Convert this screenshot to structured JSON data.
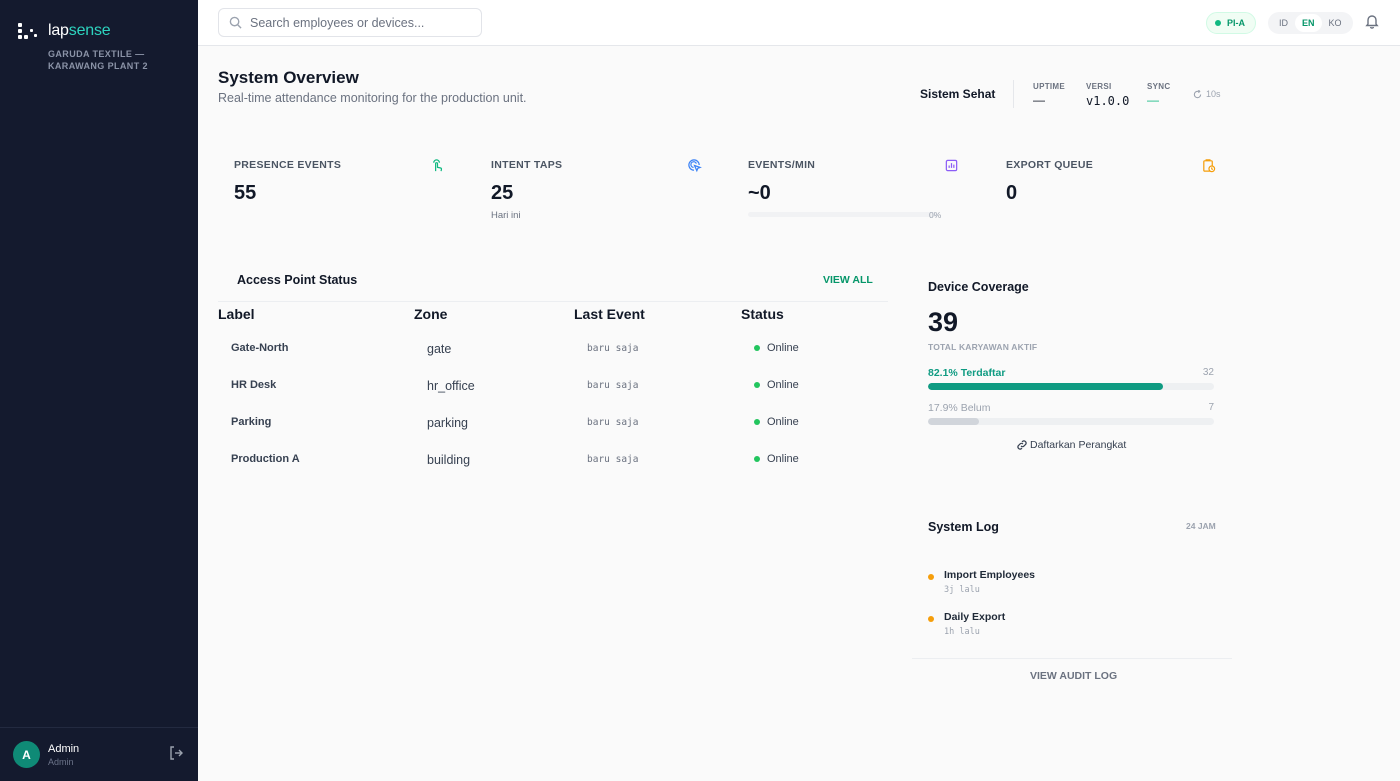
{
  "brand": {
    "lap": "lap",
    "sense": "sense",
    "org": "GARUDA TEXTILE — KARAWANG PLANT 2"
  },
  "user": {
    "initial": "A",
    "name": "Admin",
    "role": "Admin"
  },
  "search": {
    "placeholder": "Search employees or devices..."
  },
  "node_badge": {
    "label": "PI-A",
    "color": "#10b981"
  },
  "languages": [
    "ID",
    "EN",
    "KO"
  ],
  "active_language": "EN",
  "header": {
    "title": "System Overview",
    "subtitle": "Real-time attendance monitoring for the production unit."
  },
  "health": {
    "label": "Sistem Sehat",
    "uptime_label": "UPTIME",
    "uptime_value": "—",
    "version_label": "VERSI",
    "version_value": "v1.0.0",
    "sync_label": "SYNC",
    "sync_value": "—",
    "refresh": "10s"
  },
  "kpis": [
    {
      "label": "PRESENCE EVENTS",
      "value": "55",
      "icon": "hand-tap-icon",
      "color": "#10b981"
    },
    {
      "label": "INTENT TAPS",
      "value": "25",
      "sub": "Hari ini",
      "icon": "target-pointer-icon",
      "color": "#3b82f6"
    },
    {
      "label": "EVENTS/MIN",
      "value": "~0",
      "progress": 0,
      "progress_label": "0%",
      "icon": "bar-chart-icon",
      "color": "#8b5cf6"
    },
    {
      "label": "EXPORT QUEUE",
      "value": "0",
      "icon": "clipboard-clock-icon",
      "color": "#f59e0b"
    }
  ],
  "access_points": {
    "title": "Access Point Status",
    "view_all": "VIEW ALL",
    "columns": [
      "Label",
      "Zone",
      "Last Event",
      "Status"
    ],
    "rows": [
      {
        "label": "Gate-North",
        "zone": "gate",
        "last": "baru saja",
        "status": "Online"
      },
      {
        "label": "HR Desk",
        "zone": "hr_office",
        "last": "baru saja",
        "status": "Online"
      },
      {
        "label": "Parking",
        "zone": "parking",
        "last": "baru saja",
        "status": "Online"
      },
      {
        "label": "Production A",
        "zone": "building",
        "last": "baru saja",
        "status": "Online"
      }
    ]
  },
  "coverage": {
    "title": "Device Coverage",
    "total": "39",
    "total_caption": "TOTAL KARYAWAN AKTIF",
    "registered_label": "82.1% Terdaftar",
    "registered_count": "32",
    "registered_fraction": 0.821,
    "registered_color": "#0f9b82",
    "unregistered_label": "17.9% Belum",
    "unregistered_count": "7",
    "unregistered_fraction": 0.179,
    "unregistered_color": "#d1d5db",
    "link": "Daftarkan Perangkat"
  },
  "system_log": {
    "title": "System Log",
    "range": "24 JAM",
    "items": [
      {
        "title": "Import Employees",
        "when": "3j lalu"
      },
      {
        "title": "Daily Export",
        "when": "1h lalu"
      }
    ],
    "view_audit": "VIEW AUDIT LOG"
  }
}
